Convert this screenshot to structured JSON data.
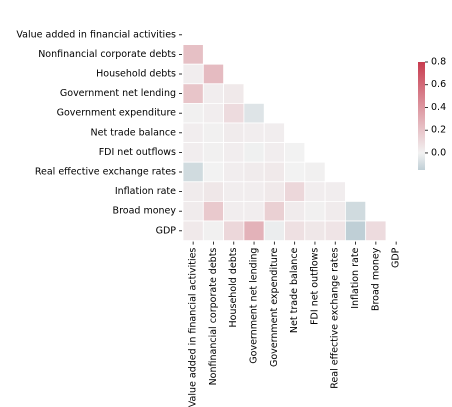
{
  "chart_data": {
    "type": "heatmap",
    "title": "",
    "style": "lower-triangle correlation matrix (mask on upper triangle and diagonal)",
    "row_labels": [
      "Value added in financial activities",
      "Nonfinancial corporate debts",
      "Household debts",
      "Government net lending",
      "Government expenditure",
      "Net trade balance",
      "FDI net outflows",
      "Real effective exchange rates",
      "Inflation rate",
      "Broad money",
      "GDP"
    ],
    "col_labels": [
      "Value added in financial activities",
      "Nonfinancial corporate debts",
      "Household debts",
      "Government net lending",
      "Government expenditure",
      "Net trade balance",
      "FDI net outflows",
      "Real effective exchange rates",
      "Inflation rate",
      "Broad money",
      "GDP"
    ],
    "values": [
      [
        null,
        null,
        null,
        null,
        null,
        null,
        null,
        null,
        null,
        null,
        null
      ],
      [
        0.22,
        null,
        null,
        null,
        null,
        null,
        null,
        null,
        null,
        null,
        null
      ],
      [
        0.02,
        0.24,
        null,
        null,
        null,
        null,
        null,
        null,
        null,
        null,
        null
      ],
      [
        0.2,
        0.02,
        0.04,
        null,
        null,
        null,
        null,
        null,
        null,
        null,
        null
      ],
      [
        0.01,
        0.02,
        0.1,
        -0.06,
        null,
        null,
        null,
        null,
        null,
        null,
        null
      ],
      [
        0.02,
        0.01,
        0.03,
        0.02,
        0.02,
        null,
        null,
        null,
        null,
        null,
        null
      ],
      [
        0.02,
        0.01,
        0.02,
        -0.01,
        0.02,
        0.0,
        null,
        null,
        null,
        null,
        null
      ],
      [
        -0.1,
        0.0,
        0.02,
        0.03,
        0.04,
        0.0,
        0.01,
        null,
        null,
        null,
        null
      ],
      [
        0.03,
        0.05,
        0.02,
        0.02,
        0.04,
        0.12,
        0.02,
        0.02,
        null,
        null,
        null
      ],
      [
        0.03,
        0.18,
        0.02,
        0.02,
        0.15,
        0.03,
        0.01,
        0.03,
        -0.1,
        null,
        null
      ],
      [
        0.04,
        0.01,
        0.12,
        0.28,
        -0.02,
        0.08,
        0.05,
        0.06,
        -0.18,
        0.1,
        null
      ]
    ],
    "colorbar": {
      "ticks": [
        "0.8",
        "0.6",
        "0.4",
        "0.2",
        "0.0"
      ],
      "tick_values": [
        0.8,
        0.6,
        0.4,
        0.2,
        0.0
      ],
      "vmin": -0.15,
      "vmax": 0.8,
      "low_color": "#bfcfd6",
      "center_color": "#f2f2f2",
      "high_color": "#c83c4f"
    },
    "grid": false
  }
}
